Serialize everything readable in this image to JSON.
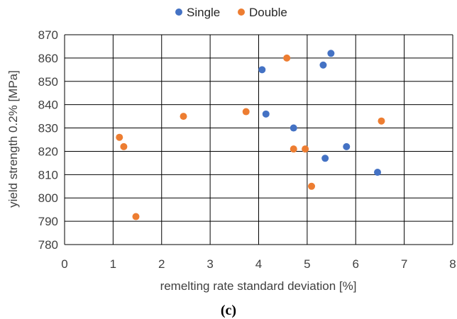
{
  "chart_data": {
    "type": "scatter",
    "xlabel": "remelting rate standard deviation [%]",
    "ylabel": "yield strength 0.2% [MPa]",
    "xlim": [
      0,
      8
    ],
    "ylim": [
      780,
      870
    ],
    "x_ticks": [
      "0",
      "1",
      "2",
      "3",
      "4",
      "5",
      "6",
      "7",
      "8"
    ],
    "y_ticks": [
      "780",
      "790",
      "800",
      "810",
      "820",
      "830",
      "840",
      "850",
      "860",
      "870"
    ],
    "grid": true,
    "legend_position": "top",
    "caption": "(c)",
    "series": [
      {
        "name": "Single",
        "color": "#4472C4",
        "points": [
          {
            "x": 4.07,
            "y": 855
          },
          {
            "x": 4.15,
            "y": 836
          },
          {
            "x": 4.72,
            "y": 830
          },
          {
            "x": 5.33,
            "y": 857
          },
          {
            "x": 5.37,
            "y": 817
          },
          {
            "x": 5.49,
            "y": 862
          },
          {
            "x": 5.81,
            "y": 822
          },
          {
            "x": 6.45,
            "y": 811
          }
        ]
      },
      {
        "name": "Double",
        "color": "#ED7D31",
        "points": [
          {
            "x": 1.13,
            "y": 826
          },
          {
            "x": 1.22,
            "y": 822
          },
          {
            "x": 1.47,
            "y": 792
          },
          {
            "x": 2.45,
            "y": 835
          },
          {
            "x": 3.74,
            "y": 837
          },
          {
            "x": 4.58,
            "y": 860
          },
          {
            "x": 4.72,
            "y": 821
          },
          {
            "x": 4.96,
            "y": 821
          },
          {
            "x": 5.09,
            "y": 805
          },
          {
            "x": 6.53,
            "y": 833
          }
        ]
      }
    ]
  }
}
